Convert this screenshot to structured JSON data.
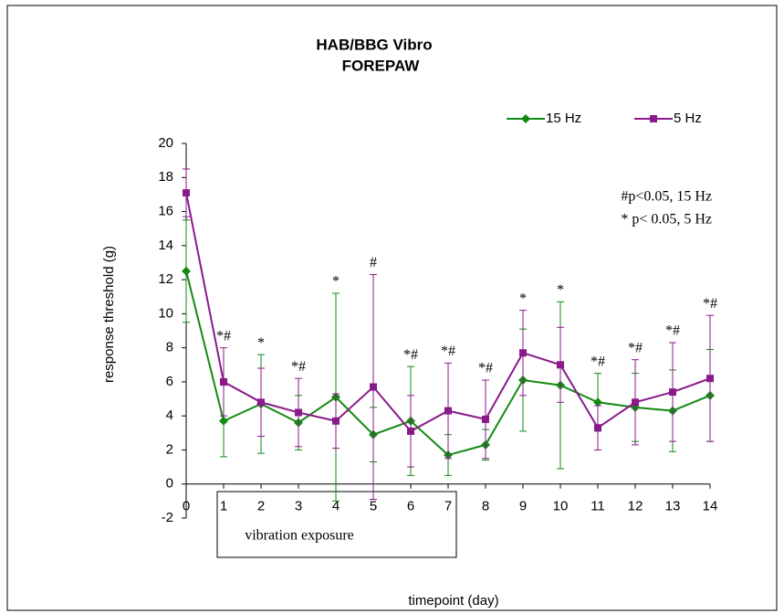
{
  "chart_data": {
    "type": "line",
    "title": [
      "HAB/BBG Vibro",
      "FOREPAW"
    ],
    "x_label": "timepoint (day)",
    "y_label": "response threshold (g)",
    "x": [
      0,
      1,
      2,
      3,
      4,
      5,
      6,
      7,
      8,
      9,
      10,
      11,
      12,
      13,
      14
    ],
    "xlim": [
      0,
      14
    ],
    "xticks": [
      0,
      1,
      2,
      3,
      4,
      5,
      6,
      7,
      8,
      9,
      10,
      11,
      12,
      13,
      14
    ],
    "ylim": [
      -2,
      20
    ],
    "yticks": [
      -2,
      0,
      2,
      4,
      6,
      8,
      10,
      12,
      14,
      16,
      18,
      20
    ],
    "grid": false,
    "series": [
      {
        "name": "15 Hz",
        "color": "#138a13",
        "marker": "diamond",
        "values": [
          12.5,
          3.7,
          4.7,
          3.6,
          5.1,
          2.9,
          3.7,
          1.7,
          2.3,
          6.1,
          5.8,
          4.8,
          4.5,
          4.3,
          5.2
        ],
        "errors": [
          3.0,
          2.1,
          2.9,
          1.6,
          6.1,
          1.6,
          3.2,
          1.2,
          0.9,
          3.0,
          4.9,
          1.7,
          2.0,
          2.4,
          2.7
        ]
      },
      {
        "name": "5 Hz",
        "color": "#8a1a8a",
        "marker": "square",
        "values": [
          17.1,
          6.0,
          4.8,
          4.2,
          3.7,
          5.7,
          3.1,
          4.3,
          3.8,
          7.7,
          7.0,
          3.3,
          4.8,
          5.4,
          6.2
        ],
        "errors": [
          1.4,
          2.0,
          2.0,
          2.0,
          1.6,
          6.6,
          2.1,
          2.8,
          2.3,
          2.5,
          2.2,
          1.3,
          2.5,
          2.9,
          3.7
        ]
      }
    ],
    "significance": [
      {
        "x": 1,
        "text": "*#"
      },
      {
        "x": 2,
        "text": "*"
      },
      {
        "x": 3,
        "text": "*#"
      },
      {
        "x": 4,
        "text": "*"
      },
      {
        "x": 5,
        "text": "#"
      },
      {
        "x": 6,
        "text": "*#"
      },
      {
        "x": 7,
        "text": "*#"
      },
      {
        "x": 8,
        "text": "*#"
      },
      {
        "x": 9,
        "text": "*"
      },
      {
        "x": 10,
        "text": "*"
      },
      {
        "x": 11,
        "text": "*#"
      },
      {
        "x": 12,
        "text": "*#"
      },
      {
        "x": 13,
        "text": "*#"
      },
      {
        "x": 14,
        "text": "*#"
      }
    ],
    "notes": [
      "#p<0.05, 15 Hz",
      "* p< 0.05,  5 Hz"
    ],
    "exposure_label": "vibration exposure",
    "legend": "top-right"
  }
}
